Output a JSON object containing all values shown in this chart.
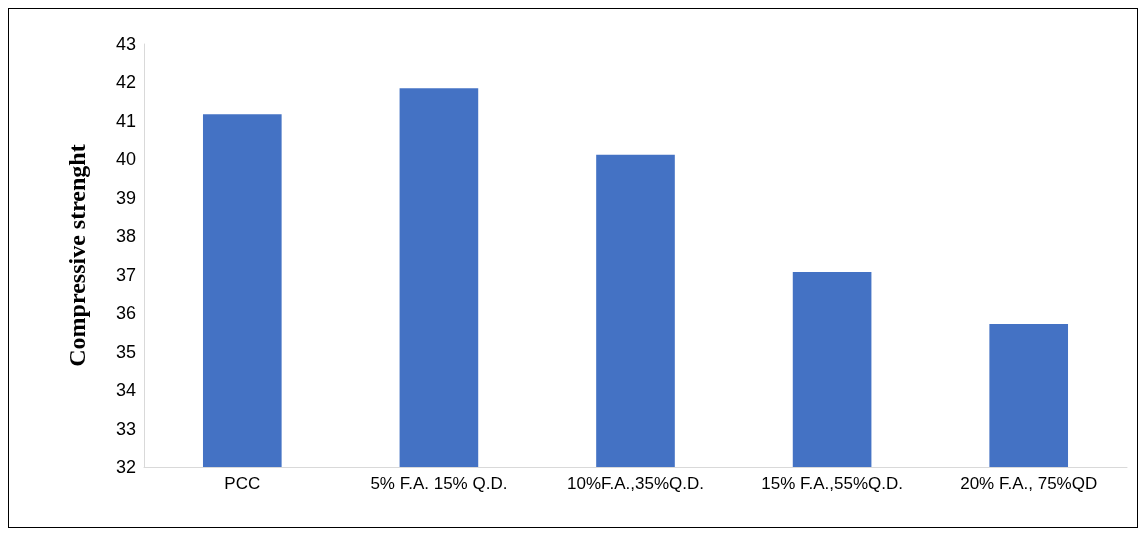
{
  "chart_data": {
    "type": "bar",
    "ylabel": "Compressive strenght",
    "categories": [
      "PCC",
      "5% F.A. 15% Q.D.",
      "10%F.A.,35%Q.D.",
      "15% F.A.,55%Q.D.",
      "20% F.A., 75%QD"
    ],
    "values": [
      41.17,
      41.85,
      40.12,
      37.07,
      35.72
    ],
    "color": "#4472c4",
    "ylim": [
      32,
      43
    ],
    "yticks": [
      32,
      33,
      34,
      35,
      36,
      37,
      38,
      39,
      40,
      41,
      42,
      43
    ],
    "grid": false
  }
}
